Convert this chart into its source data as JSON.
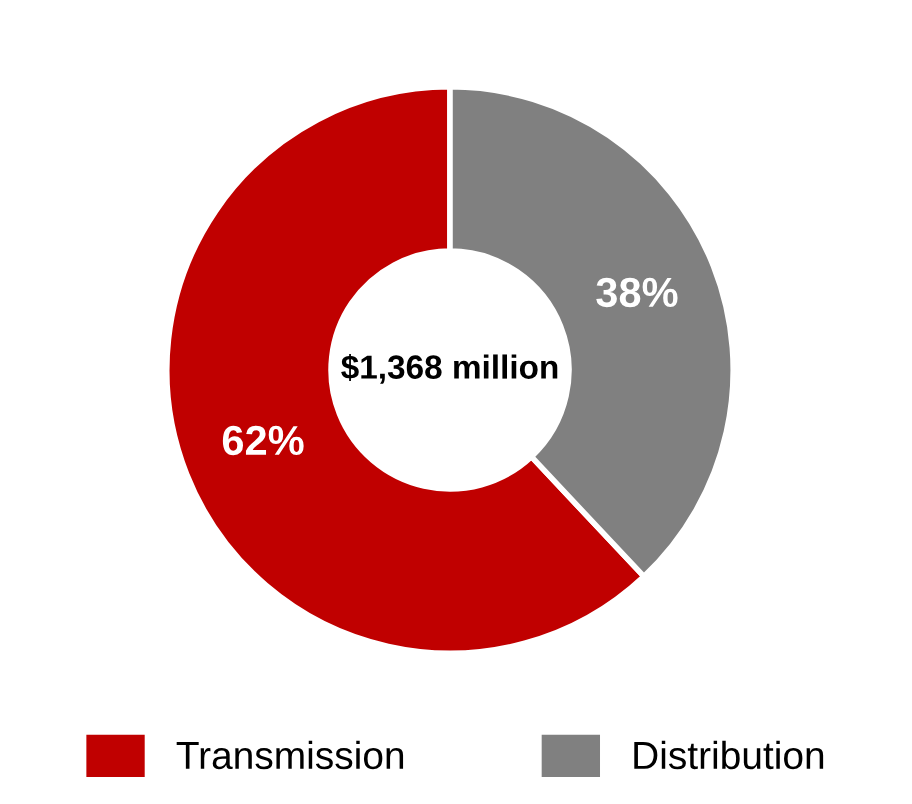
{
  "chart_data": {
    "type": "donut",
    "categories": [
      "Transmission",
      "Distribution"
    ],
    "values": [
      62,
      38
    ],
    "colors": [
      "#c00000",
      "#808080"
    ],
    "value_labels": [
      "62%",
      "38%"
    ],
    "annotations": [
      "$1,368 million"
    ],
    "legend": "bottom"
  }
}
